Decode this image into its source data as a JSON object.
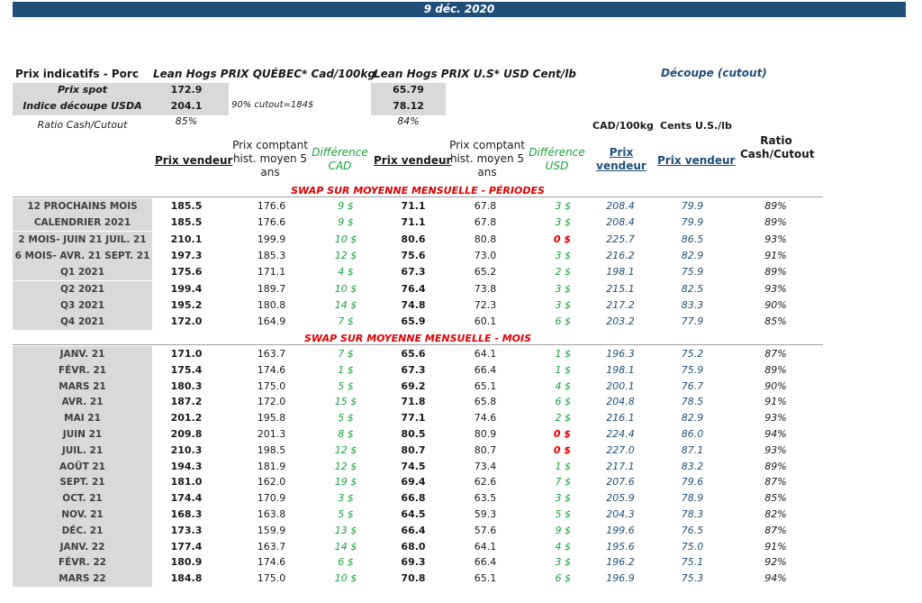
{
  "banner": {
    "date": "9 déc. 2020"
  },
  "header": {
    "prix_indicatifs": "Prix indicatifs - Porc",
    "quebec_title": "Lean Hogs PRIX QUÉBEC* Cad/100kg",
    "us_title": "Lean Hogs PRIX U.S* USD Cent/lb",
    "decoupe_title": "Découpe (cutout)",
    "prix_spot_label": "Prix spot",
    "indice_label": "Indice découpe USDA",
    "ratio_label": "Ratio Cash/Cutout",
    "cutout_note": "90% cutout=184$",
    "qc_spot": "172.9",
    "qc_indice": "204.1",
    "qc_ratio": "85%",
    "us_spot": "65.79",
    "us_indice": "78.12",
    "us_ratio": "84%",
    "cad_100kg": "CAD/100kg",
    "cents_us": "Cents U.S./lb"
  },
  "columns": {
    "prix_vendeur_1": "Prix vendeur",
    "prix_comptant_1": "Prix comptant hist. moyen 5 ans",
    "diff_cad": "Différence CAD",
    "prix_vendeur_2": "Prix vendeur",
    "prix_comptant_2": "Prix comptant hist. moyen 5 ans",
    "diff_usd": "Différence USD",
    "prix_vendeur_3": "Prix vendeur",
    "prix_vendeur_4": "Prix vendeur",
    "ratio": "Ratio Cash/Cutout"
  },
  "sections": {
    "periodes_title": "SWAP SUR MOYENNE MENSUELLE - PÉRIODES",
    "mois_title": "SWAP SUR MOYENNE MENSUELLE - MOIS"
  },
  "periodes": [
    {
      "label": "12 PROCHAINS MOIS",
      "pv": "185.5",
      "pc": "176.6",
      "dcad": "9 $",
      "pvus": "71.1",
      "pcus": "67.8",
      "dusd": "3 $",
      "cad": "208.4",
      "cents": "79.9",
      "ratio": "89%"
    },
    {
      "label": "CALENDRIER 2021",
      "pv": "185.5",
      "pc": "176.6",
      "dcad": "9 $",
      "pvus": "71.1",
      "pcus": "67.8",
      "dusd": "3 $",
      "cad": "208.4",
      "cents": "79.9",
      "ratio": "89%"
    },
    {
      "label": "2 MOIS- JUIN 21 JUIL. 21",
      "pv": "210.1",
      "pc": "199.9",
      "dcad": "10 $",
      "pvus": "80.6",
      "pcus": "80.8",
      "dusd": "0 $",
      "cad": "225.7",
      "cents": "86.5",
      "ratio": "93%"
    },
    {
      "label": "6 MOIS- AVR. 21 SEPT. 21",
      "pv": "197.3",
      "pc": "185.3",
      "dcad": "12 $",
      "pvus": "75.6",
      "pcus": "73.0",
      "dusd": "3 $",
      "cad": "216.2",
      "cents": "82.9",
      "ratio": "91%"
    },
    {
      "label": "Q1 2021",
      "pv": "175.6",
      "pc": "171.1",
      "dcad": "4 $",
      "pvus": "67.3",
      "pcus": "65.2",
      "dusd": "2 $",
      "cad": "198.1",
      "cents": "75.9",
      "ratio": "89%"
    },
    {
      "label": "Q2 2021",
      "pv": "199.4",
      "pc": "189.7",
      "dcad": "10 $",
      "pvus": "76.4",
      "pcus": "73.8",
      "dusd": "3 $",
      "cad": "215.1",
      "cents": "82.5",
      "ratio": "93%"
    },
    {
      "label": "Q3 2021",
      "pv": "195.2",
      "pc": "180.8",
      "dcad": "14 $",
      "pvus": "74.8",
      "pcus": "72.3",
      "dusd": "3 $",
      "cad": "217.2",
      "cents": "83.3",
      "ratio": "90%"
    },
    {
      "label": "Q4 2021",
      "pv": "172.0",
      "pc": "164.9",
      "dcad": "7 $",
      "pvus": "65.9",
      "pcus": "60.1",
      "dusd": "6 $",
      "cad": "203.2",
      "cents": "77.9",
      "ratio": "85%"
    }
  ],
  "mois": [
    {
      "label": "JANV. 21",
      "pv": "171.0",
      "pc": "163.7",
      "dcad": "7 $",
      "pvus": "65.6",
      "pcus": "64.1",
      "dusd": "1 $",
      "cad": "196.3",
      "cents": "75.2",
      "ratio": "87%"
    },
    {
      "label": "FÉVR. 21",
      "pv": "175.4",
      "pc": "174.6",
      "dcad": "1 $",
      "pvus": "67.3",
      "pcus": "66.4",
      "dusd": "1 $",
      "cad": "198.1",
      "cents": "75.9",
      "ratio": "89%"
    },
    {
      "label": "MARS 21",
      "pv": "180.3",
      "pc": "175.0",
      "dcad": "5 $",
      "pvus": "69.2",
      "pcus": "65.1",
      "dusd": "4 $",
      "cad": "200.1",
      "cents": "76.7",
      "ratio": "90%"
    },
    {
      "label": "AVR. 21",
      "pv": "187.2",
      "pc": "172.0",
      "dcad": "15 $",
      "pvus": "71.8",
      "pcus": "65.8",
      "dusd": "6 $",
      "cad": "204.8",
      "cents": "78.5",
      "ratio": "91%"
    },
    {
      "label": "MAI 21",
      "pv": "201.2",
      "pc": "195.8",
      "dcad": "5 $",
      "pvus": "77.1",
      "pcus": "74.6",
      "dusd": "2 $",
      "cad": "216.1",
      "cents": "82.9",
      "ratio": "93%"
    },
    {
      "label": "JUIN 21",
      "pv": "209.8",
      "pc": "201.3",
      "dcad": "8 $",
      "pvus": "80.5",
      "pcus": "80.9",
      "dusd": "0 $",
      "cad": "224.4",
      "cents": "86.0",
      "ratio": "94%"
    },
    {
      "label": "JUIL. 21",
      "pv": "210.3",
      "pc": "198.5",
      "dcad": "12 $",
      "pvus": "80.7",
      "pcus": "80.7",
      "dusd": "0 $",
      "cad": "227.0",
      "cents": "87.1",
      "ratio": "93%"
    },
    {
      "label": "AOÛT 21",
      "pv": "194.3",
      "pc": "181.9",
      "dcad": "12 $",
      "pvus": "74.5",
      "pcus": "73.4",
      "dusd": "1 $",
      "cad": "217.1",
      "cents": "83.2",
      "ratio": "89%"
    },
    {
      "label": "SEPT. 21",
      "pv": "181.0",
      "pc": "162.0",
      "dcad": "19 $",
      "pvus": "69.4",
      "pcus": "62.6",
      "dusd": "7 $",
      "cad": "207.6",
      "cents": "79.6",
      "ratio": "87%"
    },
    {
      "label": "OCT. 21",
      "pv": "174.4",
      "pc": "170.9",
      "dcad": "3 $",
      "pvus": "66.8",
      "pcus": "63.5",
      "dusd": "3 $",
      "cad": "205.9",
      "cents": "78.9",
      "ratio": "85%"
    },
    {
      "label": "NOV. 21",
      "pv": "168.3",
      "pc": "163.8",
      "dcad": "5 $",
      "pvus": "64.5",
      "pcus": "59.3",
      "dusd": "5 $",
      "cad": "204.3",
      "cents": "78.3",
      "ratio": "82%"
    },
    {
      "label": "DÉC. 21",
      "pv": "173.3",
      "pc": "159.9",
      "dcad": "13 $",
      "pvus": "66.4",
      "pcus": "57.6",
      "dusd": "9 $",
      "cad": "199.6",
      "cents": "76.5",
      "ratio": "87%"
    },
    {
      "label": "JANV. 22",
      "pv": "177.4",
      "pc": "163.7",
      "dcad": "14 $",
      "pvus": "68.0",
      "pcus": "64.1",
      "dusd": "4 $",
      "cad": "195.6",
      "cents": "75.0",
      "ratio": "91%"
    },
    {
      "label": "FÉVR. 22",
      "pv": "180.9",
      "pc": "174.6",
      "dcad": "6 $",
      "pvus": "69.3",
      "pcus": "66.4",
      "dusd": "3 $",
      "cad": "196.2",
      "cents": "75.1",
      "ratio": "92%"
    },
    {
      "label": "MARS 22",
      "pv": "184.8",
      "pc": "175.0",
      "dcad": "10 $",
      "pvus": "70.8",
      "pcus": "65.1",
      "dusd": "6 $",
      "cad": "196.9",
      "cents": "75.3",
      "ratio": "94%"
    }
  ]
}
